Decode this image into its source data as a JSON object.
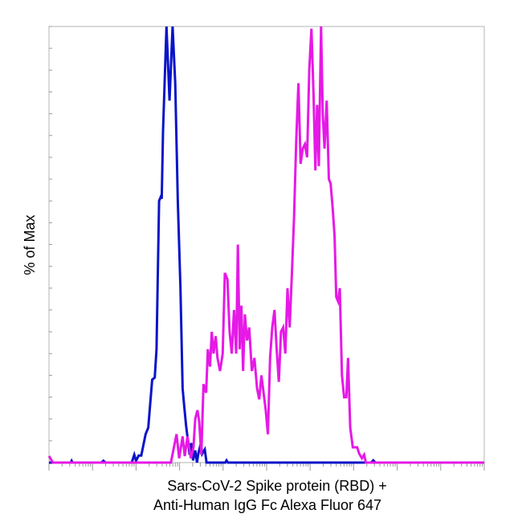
{
  "chart_data": {
    "type": "line",
    "title": "",
    "xlabel_lines": [
      "Sars-CoV-2 Spike protein (RBD) +",
      "Anti-Human IgG Fc Alexa Fluor 647"
    ],
    "ylabel": "% of Max",
    "x_scale": "log",
    "grid": false,
    "legend": "none",
    "series": [
      {
        "color": "#0a14c8",
        "points": [
          [
            0,
            0
          ],
          [
            0.5,
            0
          ],
          [
            0.52,
            0.4
          ],
          [
            0.54,
            0
          ],
          [
            1.2,
            0
          ],
          [
            1.25,
            0.4
          ],
          [
            1.3,
            0
          ],
          [
            1.9,
            0
          ],
          [
            1.96,
            1.8
          ],
          [
            2.0,
            0.4
          ],
          [
            2.06,
            1.6
          ],
          [
            2.12,
            1.6
          ],
          [
            2.22,
            6.5
          ],
          [
            2.28,
            8
          ],
          [
            2.37,
            19
          ],
          [
            2.43,
            19.5
          ],
          [
            2.47,
            26
          ],
          [
            2.53,
            60
          ],
          [
            2.57,
            61
          ],
          [
            2.59,
            60.5
          ],
          [
            2.62,
            76
          ],
          [
            2.7,
            100
          ],
          [
            2.77,
            83
          ],
          [
            2.84,
            100
          ],
          [
            2.9,
            87
          ],
          [
            2.96,
            60
          ],
          [
            3.02,
            40
          ],
          [
            3.07,
            17
          ],
          [
            3.11,
            12.5
          ],
          [
            3.15,
            8.5
          ],
          [
            3.2,
            4.5
          ],
          [
            3.23,
            1.8
          ],
          [
            3.27,
            4.5
          ],
          [
            3.31,
            0.5
          ],
          [
            3.36,
            2.8
          ],
          [
            3.4,
            0
          ],
          [
            3.43,
            2
          ],
          [
            3.49,
            4.5
          ],
          [
            3.52,
            2
          ],
          [
            3.58,
            3
          ],
          [
            3.62,
            0
          ],
          [
            4.05,
            0
          ],
          [
            4.08,
            0.5
          ],
          [
            4.11,
            0
          ],
          [
            7.4,
            0
          ],
          [
            7.45,
            0.5
          ],
          [
            7.5,
            0
          ],
          [
            10,
            0
          ]
        ]
      },
      {
        "color": "#e619e6",
        "points": [
          [
            0,
            1.5
          ],
          [
            0.09,
            0
          ],
          [
            2.8,
            0
          ],
          [
            2.93,
            6.5
          ],
          [
            2.99,
            1
          ],
          [
            3.07,
            6
          ],
          [
            3.12,
            1.5
          ],
          [
            3.18,
            6
          ],
          [
            3.26,
            1
          ],
          [
            3.32,
            3.5
          ],
          [
            3.36,
            10
          ],
          [
            3.41,
            12
          ],
          [
            3.45,
            9.5
          ],
          [
            3.5,
            1.8
          ],
          [
            3.55,
            18
          ],
          [
            3.61,
            16
          ],
          [
            3.65,
            26
          ],
          [
            3.7,
            22
          ],
          [
            3.74,
            30
          ],
          [
            3.78,
            25
          ],
          [
            3.83,
            29
          ],
          [
            3.87,
            24
          ],
          [
            3.93,
            21
          ],
          [
            3.99,
            25
          ],
          [
            4.04,
            43.5
          ],
          [
            4.1,
            42
          ],
          [
            4.15,
            30
          ],
          [
            4.2,
            25
          ],
          [
            4.25,
            35
          ],
          [
            4.3,
            25
          ],
          [
            4.34,
            50
          ],
          [
            4.38,
            26
          ],
          [
            4.42,
            36
          ],
          [
            4.46,
            21
          ],
          [
            4.5,
            34
          ],
          [
            4.55,
            28
          ],
          [
            4.6,
            31
          ],
          [
            4.66,
            21
          ],
          [
            4.72,
            24
          ],
          [
            4.78,
            17
          ],
          [
            4.83,
            14.5
          ],
          [
            4.88,
            20
          ],
          [
            4.93,
            16
          ],
          [
            4.98,
            12
          ],
          [
            5.03,
            6.5
          ],
          [
            5.08,
            24
          ],
          [
            5.13,
            31
          ],
          [
            5.18,
            35
          ],
          [
            5.23,
            26
          ],
          [
            5.28,
            18.5
          ],
          [
            5.33,
            30
          ],
          [
            5.38,
            31
          ],
          [
            5.43,
            25
          ],
          [
            5.48,
            40
          ],
          [
            5.53,
            31
          ],
          [
            5.58,
            43
          ],
          [
            5.63,
            56
          ],
          [
            5.68,
            74
          ],
          [
            5.73,
            87
          ],
          [
            5.78,
            68.5
          ],
          [
            5.83,
            72
          ],
          [
            5.88,
            73
          ],
          [
            5.93,
            70
          ],
          [
            5.98,
            90
          ],
          [
            6.03,
            99.5
          ],
          [
            6.08,
            84
          ],
          [
            6.12,
            67
          ],
          [
            6.16,
            82
          ],
          [
            6.2,
            68
          ],
          [
            6.25,
            100
          ],
          [
            6.29,
            80
          ],
          [
            6.33,
            72
          ],
          [
            6.38,
            83
          ],
          [
            6.43,
            65
          ],
          [
            6.47,
            64
          ],
          [
            6.52,
            58
          ],
          [
            6.56,
            52
          ],
          [
            6.6,
            38
          ],
          [
            6.64,
            37
          ],
          [
            6.68,
            40
          ],
          [
            6.73,
            20
          ],
          [
            6.78,
            15
          ],
          [
            6.83,
            15
          ],
          [
            6.87,
            24
          ],
          [
            6.92,
            8
          ],
          [
            6.98,
            3.5
          ],
          [
            7.03,
            3.5
          ],
          [
            7.08,
            3.5
          ],
          [
            7.13,
            2
          ],
          [
            7.19,
            1
          ],
          [
            7.24,
            1.8
          ],
          [
            7.28,
            0
          ],
          [
            10,
            0
          ]
        ]
      }
    ]
  }
}
